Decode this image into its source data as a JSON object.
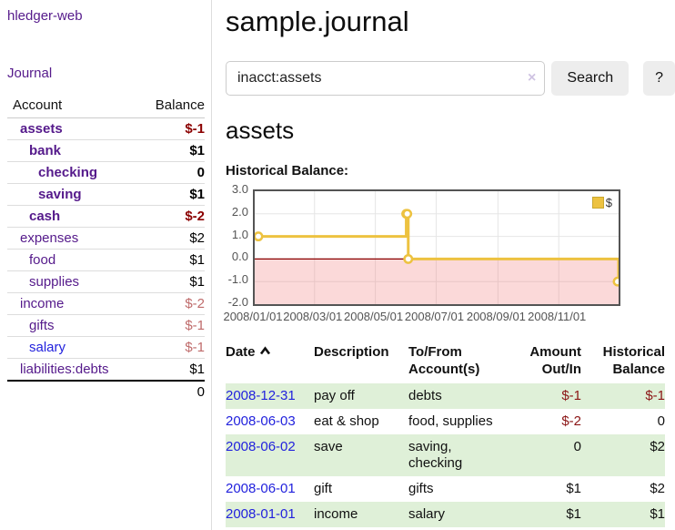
{
  "app": {
    "brand": "hledger-web"
  },
  "sidebar": {
    "journal_link": "Journal",
    "table_headers": {
      "account": "Account",
      "balance": "Balance"
    },
    "accounts": [
      {
        "name": "assets",
        "level": 1,
        "bold": true,
        "balance": "$-1",
        "neg": "strong",
        "link": "purple"
      },
      {
        "name": "bank",
        "level": 2,
        "bold": true,
        "balance": "$1",
        "neg": "none",
        "link": "purple"
      },
      {
        "name": "checking",
        "level": 3,
        "bold": true,
        "balance": "0",
        "neg": "none",
        "link": "purple"
      },
      {
        "name": "saving",
        "level": 3,
        "bold": true,
        "balance": "$1",
        "neg": "none",
        "link": "purple"
      },
      {
        "name": "cash",
        "level": 2,
        "bold": true,
        "balance": "$-2",
        "neg": "strong",
        "link": "purple"
      },
      {
        "name": "expenses",
        "level": 1,
        "bold": false,
        "balance": "$2",
        "neg": "none",
        "link": "purple"
      },
      {
        "name": "food",
        "level": 2,
        "bold": false,
        "balance": "$1",
        "neg": "none",
        "link": "purple"
      },
      {
        "name": "supplies",
        "level": 2,
        "bold": false,
        "balance": "$1",
        "neg": "none",
        "link": "purple"
      },
      {
        "name": "income",
        "level": 1,
        "bold": false,
        "balance": "$-2",
        "neg": "soft",
        "link": "purple"
      },
      {
        "name": "gifts",
        "level": 2,
        "bold": false,
        "balance": "$-1",
        "neg": "soft",
        "link": "purple"
      },
      {
        "name": "salary",
        "level": 2,
        "bold": false,
        "balance": "$-1",
        "neg": "soft",
        "link": "blue"
      },
      {
        "name": "liabilities:debts",
        "level": 1,
        "bold": false,
        "balance": "$1",
        "neg": "none",
        "link": "purple"
      }
    ],
    "total": "0"
  },
  "header": {
    "title": "sample.journal"
  },
  "search": {
    "value": "inacct:assets",
    "clear_icon": "×",
    "button_label": "Search",
    "help_label": "?"
  },
  "account_page": {
    "title": "assets",
    "chart_label": "Historical Balance:"
  },
  "chart_data": {
    "type": "line",
    "title": "Historical Balance",
    "step": true,
    "series": [
      {
        "name": "$",
        "color": "#edc240",
        "points": [
          [
            "2008-01-01",
            1
          ],
          [
            "2008-06-01",
            2
          ],
          [
            "2008-06-02",
            2
          ],
          [
            "2008-06-03",
            0
          ],
          [
            "2008-12-31",
            -1
          ]
        ]
      }
    ],
    "x_range": [
      "2008-01-01",
      "2008-12-31"
    ],
    "ylim": [
      -2,
      3
    ],
    "y_tick_labels": [
      "3.0",
      "2.0",
      "1.0",
      "0.0",
      "-1.0",
      "-2.0"
    ],
    "y_tick_values": [
      3,
      2,
      1,
      0,
      -1,
      -2
    ],
    "x_tick_dates": [
      "2008-01-01",
      "2008-03-01",
      "2008-05-01",
      "2008-07-01",
      "2008-09-01",
      "2008-11-01"
    ],
    "x_tick_labels": [
      "2008/01/01",
      "2008/03/01",
      "2008/05/01",
      "2008/07/01",
      "2008/09/01",
      "2008/11/01"
    ],
    "grid": true,
    "grid_color": "#e6e6e6",
    "negative_region_fill": "#f07878",
    "zero_line_color": "#8b0000",
    "legend": {
      "position": "top-right",
      "label": "$",
      "swatch_color": "#edc240"
    }
  },
  "register": {
    "headers": {
      "date": "Date",
      "sort_icon": "chevron-up",
      "description": "Description",
      "account": "To/From Account(s)",
      "amount": "Amount Out/In",
      "balance": "Historical Balance"
    },
    "rows": [
      {
        "date": "2008-12-31",
        "description": "pay off",
        "account": "debts",
        "amount": "$-1",
        "amount_neg": true,
        "balance": "$-1",
        "balance_neg": true
      },
      {
        "date": "2008-06-03",
        "description": "eat & shop",
        "account": "food, supplies",
        "amount": "$-2",
        "amount_neg": true,
        "balance": "0",
        "balance_neg": false
      },
      {
        "date": "2008-06-02",
        "description": "save",
        "account": "saving, checking",
        "amount": "0",
        "amount_neg": false,
        "balance": "$2",
        "balance_neg": false
      },
      {
        "date": "2008-06-01",
        "description": "gift",
        "account": "gifts",
        "amount": "$1",
        "amount_neg": false,
        "balance": "$2",
        "balance_neg": false
      },
      {
        "date": "2008-01-01",
        "description": "income",
        "account": "salary",
        "amount": "$1",
        "amount_neg": false,
        "balance": "$1",
        "balance_neg": false
      }
    ]
  }
}
